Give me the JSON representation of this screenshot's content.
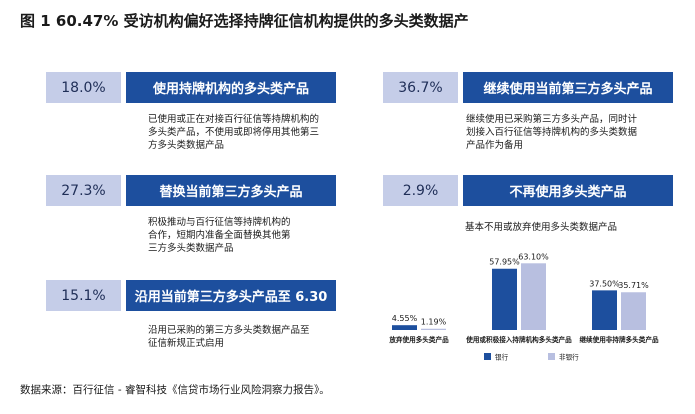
{
  "figure_title": "图 1   60.47% 受访机构偏好选择持牌征信机构提供的多头类数据产",
  "cards": [
    {
      "percent": "18.0%",
      "label": "使用持牌机构的多头类产品",
      "description": [
        "已使用或正在对接百行征信等持牌机构的",
        "多头类产品，不使用或即将停用其他第三",
        "方多头类数据产品"
      ]
    },
    {
      "percent": "36.7%",
      "label": "继续使用当前第三方多头产品",
      "description": [
        "继续使用已采购第三方多头产品，同时计",
        "划接入百行征信等持牌机构的多头类数据",
        "产品作为备用"
      ]
    },
    {
      "percent": "27.3%",
      "label": "替换当前第三方多头产品",
      "description": [
        "积极推动与百行征信等持牌机构的",
        "合作，短期内准备全面替换其他第",
        "三方多头类数据产品"
      ]
    },
    {
      "percent": "2.9%",
      "label": "不再使用多头类产品",
      "description": [
        "基本不用或放弃使用多头类数据产品"
      ]
    },
    {
      "percent": "15.1%",
      "label": "沿用当前第三方多头产品至 6.30",
      "description": [
        "沿用已采购的第三方多头类数据产品至",
        "征信新规正式启用"
      ]
    }
  ],
  "chart_data": {
    "type": "bar",
    "title": "",
    "categories": [
      "放弃使用多头类产品",
      "使用或积极接入持牌机构多头类产品",
      "继续使用非持牌多头类产品"
    ],
    "series": [
      {
        "name": "银行",
        "values": [
          4.55,
          57.95,
          37.5
        ],
        "labels": [
          "4.55%",
          "57.95%",
          "37.50%"
        ],
        "color": "#1d4f9e"
      },
      {
        "name": "非银行",
        "values": [
          1.19,
          63.1,
          35.71
        ],
        "labels": [
          "1.19%",
          "63.10%",
          "35.71%"
        ],
        "color": "#b8bfe0"
      }
    ],
    "xlabel": "",
    "ylabel": "",
    "ylim": [
      0,
      70
    ],
    "grid": false,
    "legend": "bottom"
  },
  "source": "数据来源：百行征信 - 睿智科技《信贷市场行业风险洞察力报告》。"
}
